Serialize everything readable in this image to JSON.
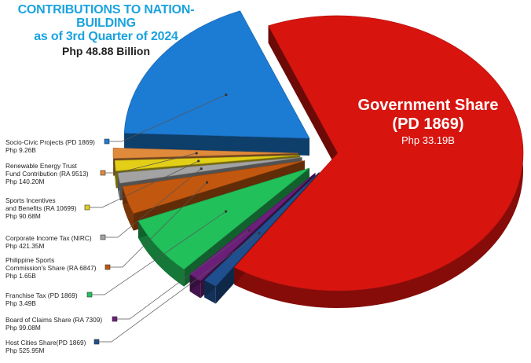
{
  "header": {
    "title_line1": "CONTRIBUTIONS TO NATION-BUILDING",
    "title_line2": "as of 3rd Quarter of 2024",
    "total": "Php 48.88 Billion"
  },
  "chart_data": {
    "type": "pie",
    "title": "CONTRIBUTIONS TO NATION-BUILDING as of 3rd Quarter of 2024",
    "subtitle": "Php 48.88 Billion",
    "slices": [
      {
        "label": "Government Share (PD 1869)",
        "value_text": "Php 33.19B",
        "value_php_millions": 33190,
        "color": "#d8140f"
      },
      {
        "label": "Host Cities Share(PD 1869)",
        "value_text": "Php 525.95M",
        "value_php_millions": 525.95,
        "color": "#1f4f8f"
      },
      {
        "label": "Board of Claims Share (RA 7309)",
        "value_text": "Php 99.08M",
        "value_php_millions": 99.08,
        "color": "#6b1f7a"
      },
      {
        "label": "Franchise Tax (PD 1869)",
        "value_text": "Php 3.49B",
        "value_php_millions": 3490,
        "color": "#22c05a"
      },
      {
        "label": "Philippine Sports Commission's Share (RA 6847)",
        "value_text": "Php 1.65B",
        "value_php_millions": 1650,
        "color": "#c2570f"
      },
      {
        "label": "Corporate Income Tax (NIRC)",
        "value_text": "Php 421.35M",
        "value_php_millions": 421.35,
        "color": "#a3a3a3"
      },
      {
        "label": "Sports Incentives and Benefits (RA 10699)",
        "value_text": "Php 90.68M",
        "value_php_millions": 90.68,
        "color": "#e3cf17"
      },
      {
        "label": "Renewable Energy Trust Fund Contribution (RA 9513)",
        "value_text": "Php 140.20M",
        "value_php_millions": 140.2,
        "color": "#e08a3c"
      },
      {
        "label": "Socio-Civic Projects (PD 1869)",
        "value_text": "Php 9.26B",
        "value_php_millions": 9260,
        "color": "#1c7bd3"
      }
    ],
    "legend_labels": [
      {
        "lines": [
          "Socio-Civic Projects (PD 1869)",
          "Php 9.26B"
        ],
        "color": "#1c7bd3"
      },
      {
        "lines": [
          "Renewable Energy Trust",
          "Fund Contribution (RA 9513)",
          "Php 140.20M"
        ],
        "color": "#e08a3c"
      },
      {
        "lines": [
          "Sports Incentives",
          "and Benefits (RA 10699)",
          "Php 90.68M"
        ],
        "color": "#e3cf17"
      },
      {
        "lines": [
          "Corporate Income Tax (NIRC)",
          "Php 421.35M"
        ],
        "color": "#a3a3a3"
      },
      {
        "lines": [
          "Philippine Sports",
          "Commission's Share (RA 6847)",
          "Php 1.65B"
        ],
        "color": "#c2570f"
      },
      {
        "lines": [
          "Franchise Tax (PD 1869)",
          "Php 3.49B"
        ],
        "color": "#22c05a"
      },
      {
        "lines": [
          "Board of Claims Share (RA 7309)",
          "Php 99.08M"
        ],
        "color": "#6b1f7a"
      },
      {
        "lines": [
          "Host Cities Share(PD 1869)",
          "Php 525.95M"
        ],
        "color": "#1f4f8f"
      }
    ],
    "big_label": {
      "line1": "Government Share",
      "line2": "(PD 1869)",
      "line3": "Php 33.19B"
    }
  }
}
